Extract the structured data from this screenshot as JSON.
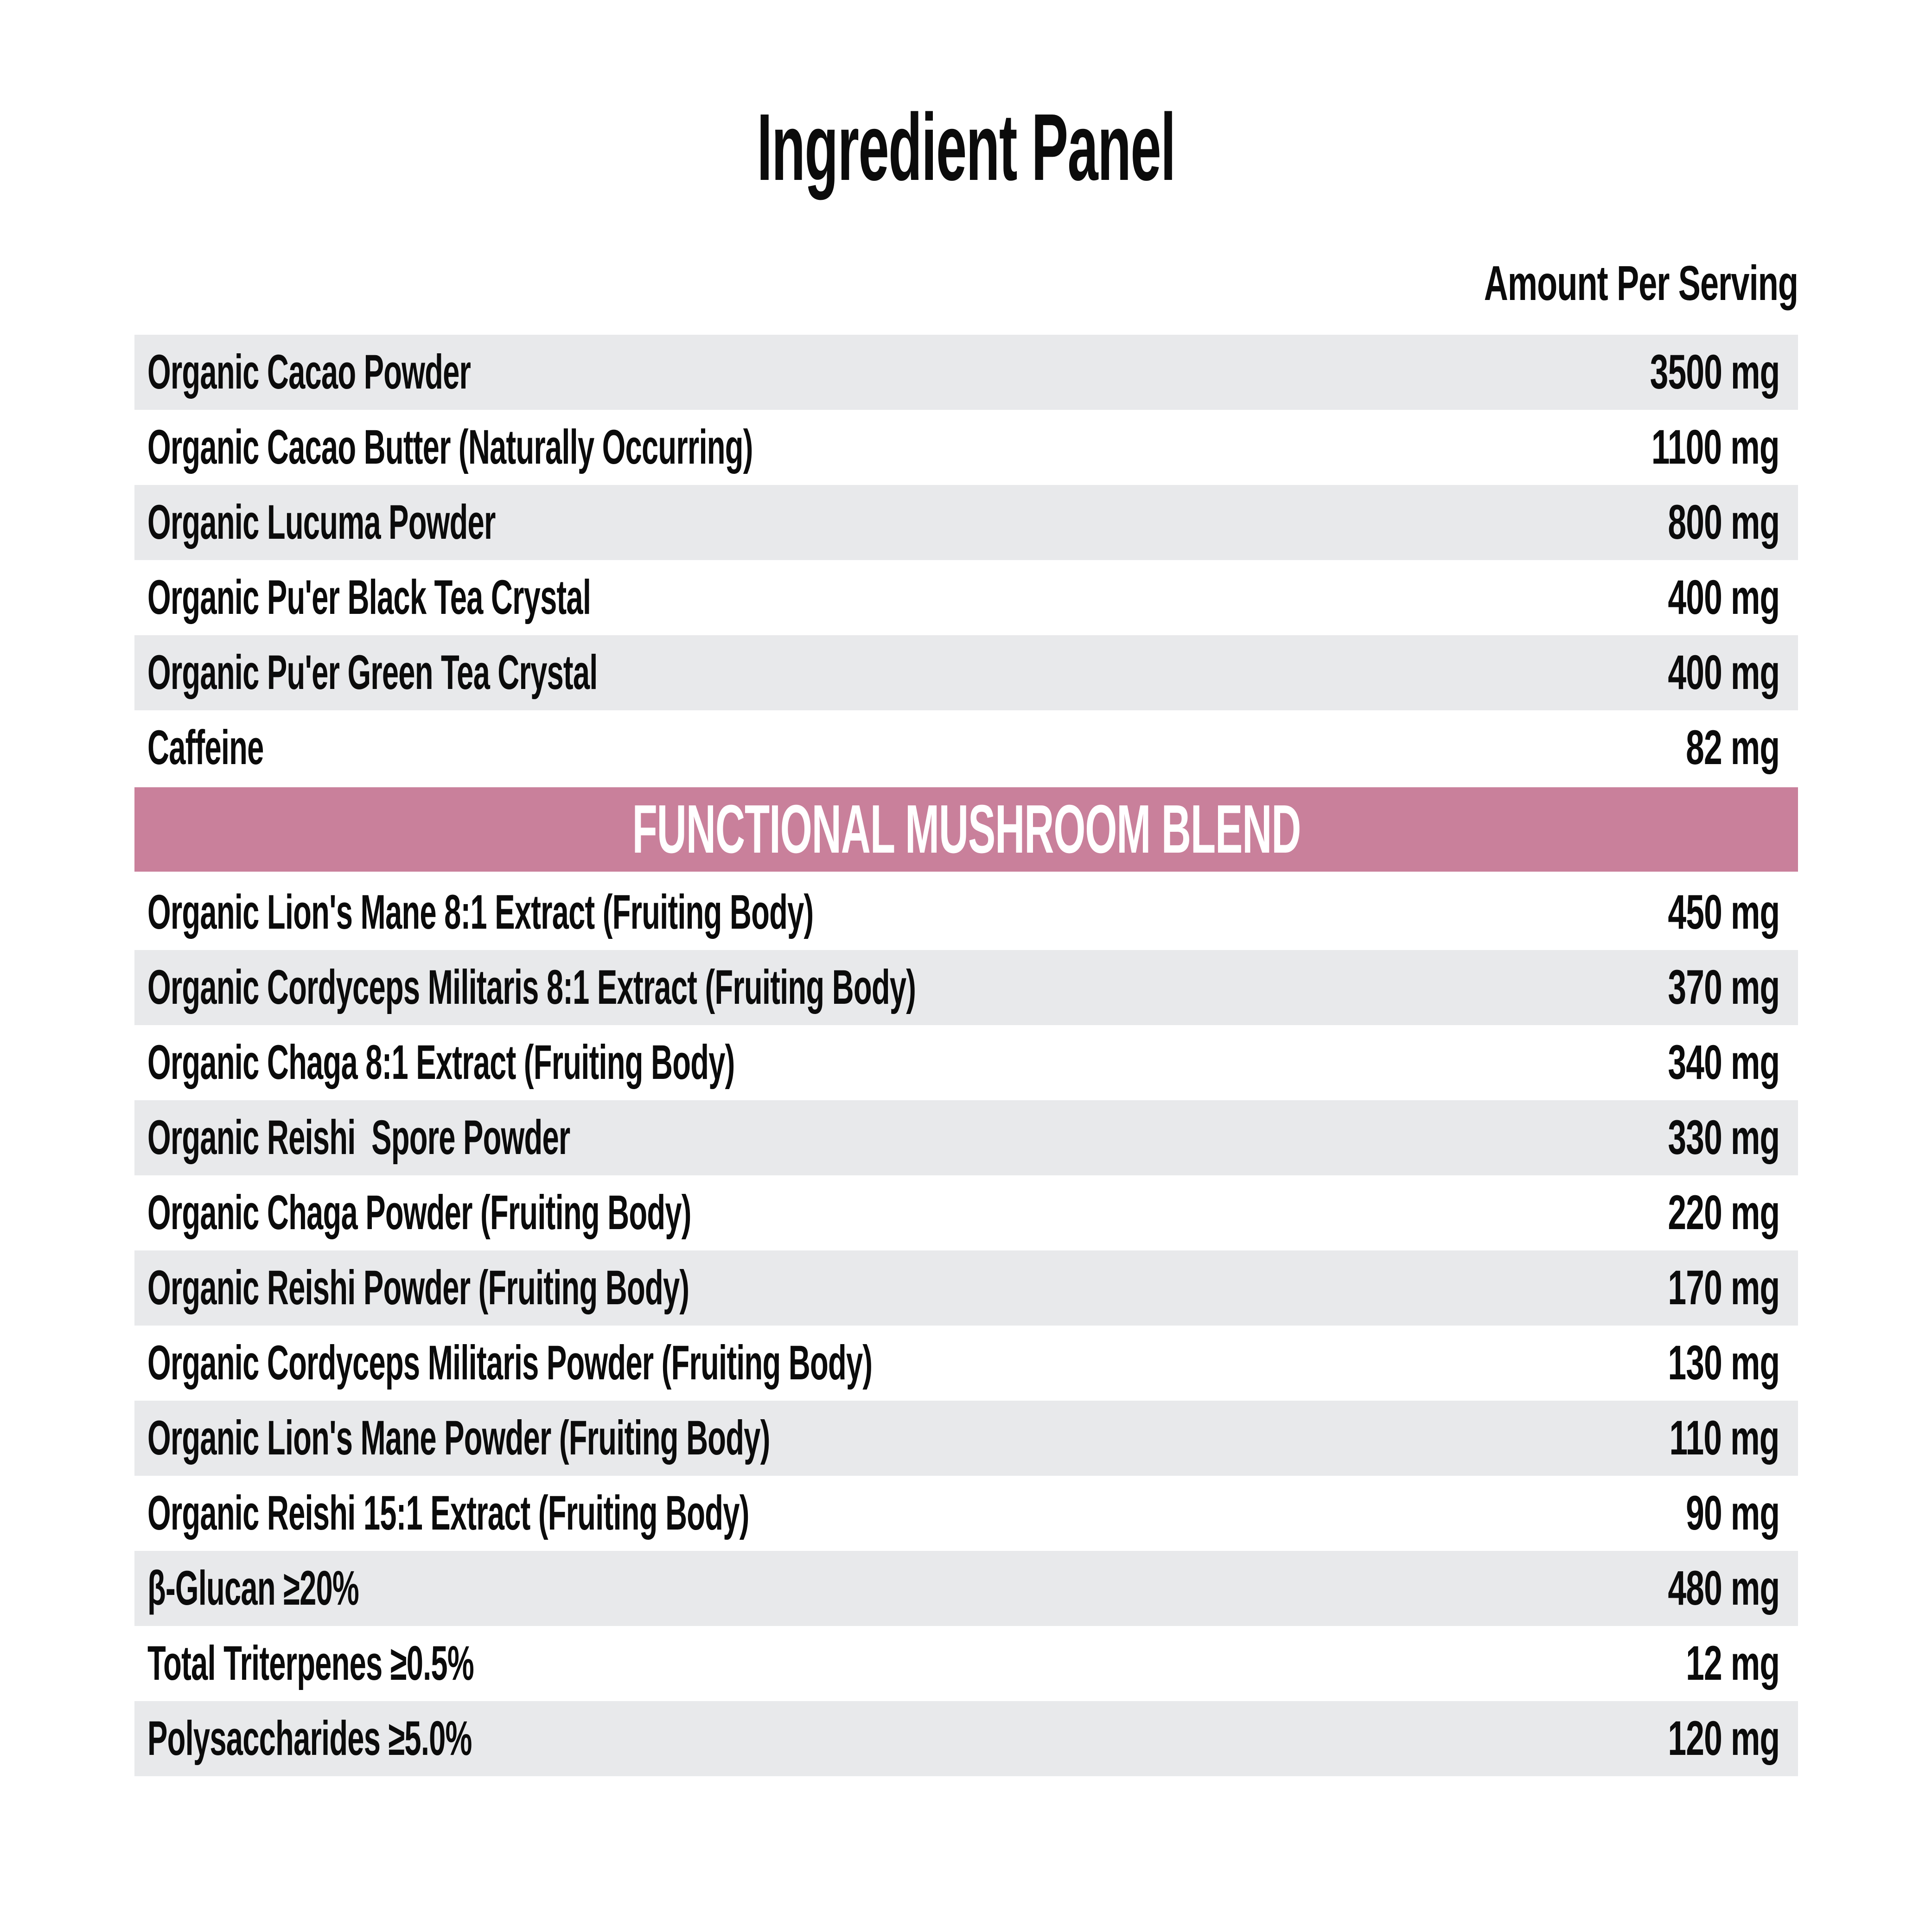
{
  "title": "Ingredient Panel",
  "table": {
    "amount_header": "Amount Per Serving",
    "unit": "mg",
    "main_rows": [
      {
        "label": "Organic Cacao Powder",
        "amount": "3500 mg"
      },
      {
        "label": "Organic Cacao Butter (Naturally Occurring)",
        "amount": "1100 mg"
      },
      {
        "label": "Organic Lucuma Powder",
        "amount": "800 mg"
      },
      {
        "label": "Organic Pu'er Black Tea Crystal",
        "amount": "400 mg"
      },
      {
        "label": "Organic Pu'er Green Tea Crystal",
        "amount": "400 mg"
      },
      {
        "label": "Caffeine",
        "amount": "82 mg"
      }
    ],
    "blend_banner": "FUNCTIONAL MUSHROOM BLEND",
    "blend_rows": [
      {
        "label": "Organic Lion's Mane 8:1 Extract (Fruiting Body)",
        "amount": "450 mg"
      },
      {
        "label": "Organic Cordyceps Militaris 8:1 Extract (Fruiting Body)",
        "amount": "370 mg"
      },
      {
        "label": "Organic Chaga 8:1 Extract (Fruiting Body)",
        "amount": "340 mg"
      },
      {
        "label": "Organic Reishi  Spore Powder",
        "amount": "330 mg"
      },
      {
        "label": "Organic Chaga Powder (Fruiting Body)",
        "amount": "220 mg"
      },
      {
        "label": "Organic Reishi Powder (Fruiting Body)",
        "amount": "170 mg"
      },
      {
        "label": "Organic Cordyceps Militaris Powder (Fruiting Body)",
        "amount": "130 mg"
      },
      {
        "label": "Organic Lion's Mane Powder (Fruiting Body)",
        "amount": "110 mg"
      },
      {
        "label": "Organic Reishi 15:1 Extract (Fruiting Body)",
        "amount": "90 mg"
      },
      {
        "label": "β-Glucan ≥20%",
        "amount": "480 mg"
      },
      {
        "label": "Total Triterpenes ≥0.5%",
        "amount": "12 mg"
      },
      {
        "label": "Polysaccharides ≥5.0%",
        "amount": "120 mg"
      }
    ]
  },
  "colors": {
    "banner_pink": "#c9809b",
    "row_shade": "#e8e9eb",
    "text": "#0b0b0b",
    "banner_text": "#ffffff",
    "background": "#ffffff"
  }
}
